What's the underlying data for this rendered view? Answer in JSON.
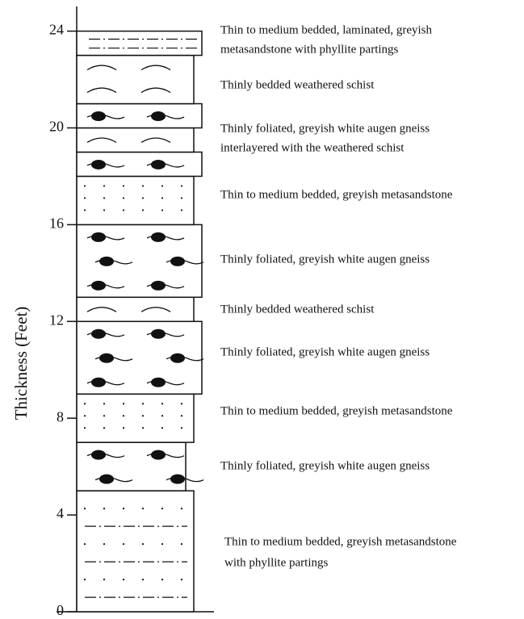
{
  "column": {
    "axis_label": "Thickness (Feet)",
    "ylim": [
      0,
      25
    ],
    "yticks": [
      0,
      4,
      8,
      12,
      16,
      20,
      24
    ],
    "layers": [
      {
        "bottom": 0,
        "top": 5
      },
      {
        "bottom": 5,
        "top": 7
      },
      {
        "bottom": 7,
        "top": 9
      },
      {
        "bottom": 9,
        "top": 12
      },
      {
        "bottom": 12,
        "top": 13
      },
      {
        "bottom": 13,
        "top": 16
      },
      {
        "bottom": 16,
        "top": 18
      },
      {
        "bottom": 18,
        "top": 19
      },
      {
        "bottom": 19,
        "top": 20
      },
      {
        "bottom": 20,
        "top": 21
      },
      {
        "bottom": 21,
        "top": 23
      },
      {
        "bottom": 23,
        "top": 24
      }
    ],
    "descriptions": [
      [
        "Thin to medium bedded, greyish metasandstone",
        "with phyllite partings"
      ],
      [
        "Thinly foliated, greyish white augen gneiss"
      ],
      [
        "Thin to medium bedded, greyish metasandstone"
      ],
      [
        "Thinly foliated, greyish white augen gneiss"
      ],
      [
        "Thinly bedded weathered schist"
      ],
      [
        "Thinly foliated, greyish white augen gneiss"
      ],
      [
        "Thin to medium bedded, greyish metasandstone"
      ],
      [
        "Thinly foliated, greyish white augen gneiss",
        "interlayered with the weathered schist"
      ],
      [
        "Thinly bedded weathered schist"
      ],
      [
        "Thin to medium bedded, laminated, greyish",
        "metasandstone with phyllite partings"
      ]
    ]
  }
}
